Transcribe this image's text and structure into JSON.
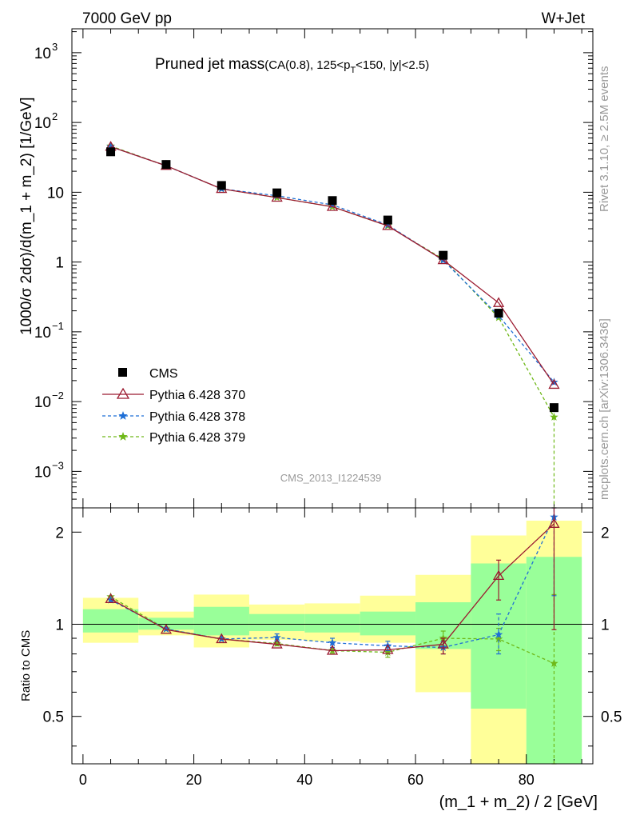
{
  "header": {
    "left": "7000 GeV pp",
    "right": "W+Jet"
  },
  "side_labels": {
    "rivet": "Rivet 3.1.10, ≥ 2.5M events",
    "mcplots": "mcplots.cern.ch [arXiv:1306.3436]"
  },
  "plot_title": {
    "main": "Pruned jet mass",
    "sub_prefix": "(CA(0.8), 125<p",
    "sub_sub": "T",
    "sub_suffix": "<150, |y|<2.5)"
  },
  "watermark": "CMS_2013_I1224539",
  "axes": {
    "ylabel_top": "1000/σ 2dσ)/d(m_1 + m_2) [1/GeV]",
    "ylabel_bottom": "Ratio to CMS",
    "xlabel": "(m_1 + m_2) / 2 [GeV]"
  },
  "ticks": {
    "x": [
      "0",
      "20",
      "40",
      "60",
      "80"
    ],
    "top_y": [
      {
        "base": "10",
        "exp": "3",
        "v": 1000
      },
      {
        "base": "10",
        "exp": "2",
        "v": 100
      },
      {
        "base": "10",
        "exp": "",
        "v": 10
      },
      {
        "base": "1",
        "exp": "",
        "v": 1
      },
      {
        "base": "10",
        "exp": "−1",
        "v": 0.1
      },
      {
        "base": "10",
        "exp": "−2",
        "v": 0.01
      },
      {
        "base": "10",
        "exp": "−3",
        "v": 0.001
      }
    ],
    "bottom_y": [
      {
        "label": "2",
        "v": 2
      },
      {
        "label": "1",
        "v": 1
      },
      {
        "label": "0.5",
        "v": 0.5
      }
    ]
  },
  "legend": {
    "cms": "CMS",
    "p370": "Pythia 6.428 370",
    "p378": "Pythia 6.428 378",
    "p379": "Pythia 6.428 379"
  },
  "colors": {
    "data": "#000000",
    "p370": "#9b1b30",
    "p378": "#1f6fd6",
    "p379": "#6fb819",
    "band_yellow": "#ffff99",
    "band_green": "#99ff99"
  },
  "chart_data": {
    "type": "line",
    "x_bins": [
      [
        0,
        10
      ],
      [
        10,
        20
      ],
      [
        20,
        30
      ],
      [
        30,
        40
      ],
      [
        40,
        50
      ],
      [
        50,
        60
      ],
      [
        60,
        70
      ],
      [
        70,
        80
      ],
      [
        80,
        90
      ]
    ],
    "x": [
      5,
      15,
      25,
      35,
      45,
      55,
      65,
      75,
      85
    ],
    "xlim": [
      -2,
      92
    ],
    "top": {
      "yscale": "log",
      "ylim": [
        0.0003,
        2200
      ],
      "series": [
        {
          "name": "CMS",
          "values": [
            38,
            25,
            12.5,
            9.8,
            7.6,
            4.0,
            1.25,
            0.185,
            0.0082
          ]
        },
        {
          "name": "Pythia 6.428 370",
          "values": [
            45,
            24,
            11.2,
            8.4,
            6.2,
            3.3,
            1.07,
            0.26,
            0.0175
          ]
        },
        {
          "name": "Pythia 6.428 378",
          "values": [
            45,
            24,
            11.2,
            8.9,
            6.6,
            3.4,
            1.06,
            0.17,
            0.019
          ]
        },
        {
          "name": "Pythia 6.428 379",
          "values": [
            46,
            24,
            11.2,
            8.4,
            6.2,
            3.3,
            1.1,
            0.16,
            0.006
          ]
        }
      ]
    },
    "bottom": {
      "yscale": "log",
      "ylim": [
        0.35,
        2.4
      ],
      "reference": 1,
      "band_green": [
        [
          0.94,
          1.12
        ],
        [
          0.96,
          1.05
        ],
        [
          0.92,
          1.14
        ],
        [
          0.95,
          1.08
        ],
        [
          0.94,
          1.08
        ],
        [
          0.92,
          1.1
        ],
        [
          0.83,
          1.18
        ],
        [
          0.53,
          1.58
        ],
        [
          0.35,
          1.66
        ]
      ],
      "band_yellow": [
        [
          0.87,
          1.22
        ],
        [
          0.92,
          1.1
        ],
        [
          0.84,
          1.25
        ],
        [
          0.89,
          1.16
        ],
        [
          0.88,
          1.17
        ],
        [
          0.87,
          1.24
        ],
        [
          0.6,
          1.45
        ],
        [
          0.35,
          1.95
        ],
        [
          0.35,
          2.18
        ]
      ],
      "series": [
        {
          "name": "Pythia 6.428 370",
          "values": [
            1.21,
            0.96,
            0.895,
            0.86,
            0.82,
            0.825,
            0.86,
            1.44,
            2.13
          ],
          "err": [
            [
              1.21,
              1.21
            ],
            [
              0.96,
              0.96
            ],
            [
              0.895,
              0.895
            ],
            [
              0.86,
              0.86
            ],
            [
              0.82,
              0.82
            ],
            [
              0.825,
              0.825
            ],
            [
              0.8,
              0.9
            ],
            [
              1.2,
              1.62
            ],
            [
              0.96,
              2.4
            ]
          ]
        },
        {
          "name": "Pythia 6.428 378",
          "values": [
            1.2,
            0.965,
            0.895,
            0.905,
            0.87,
            0.85,
            0.84,
            0.925,
            2.24
          ],
          "err": [
            [
              1.2,
              1.2
            ],
            [
              0.965,
              0.965
            ],
            [
              0.895,
              0.895
            ],
            [
              0.88,
              0.93
            ],
            [
              0.84,
              0.9
            ],
            [
              0.82,
              0.88
            ],
            [
              0.8,
              0.88
            ],
            [
              0.8,
              1.08
            ],
            [
              1.24,
              2.4
            ]
          ]
        },
        {
          "name": "Pythia 6.428 379",
          "values": [
            1.23,
            0.965,
            0.895,
            0.865,
            0.82,
            0.81,
            0.9,
            0.895,
            0.745
          ],
          "err": [
            [
              1.23,
              1.23
            ],
            [
              0.965,
              0.965
            ],
            [
              0.895,
              0.895
            ],
            [
              0.85,
              0.88
            ],
            [
              0.8,
              0.84
            ],
            [
              0.78,
              0.84
            ],
            [
              0.85,
              0.95
            ],
            [
              0.82,
              0.97
            ],
            [
              0.35,
              1.25
            ]
          ]
        }
      ]
    }
  }
}
